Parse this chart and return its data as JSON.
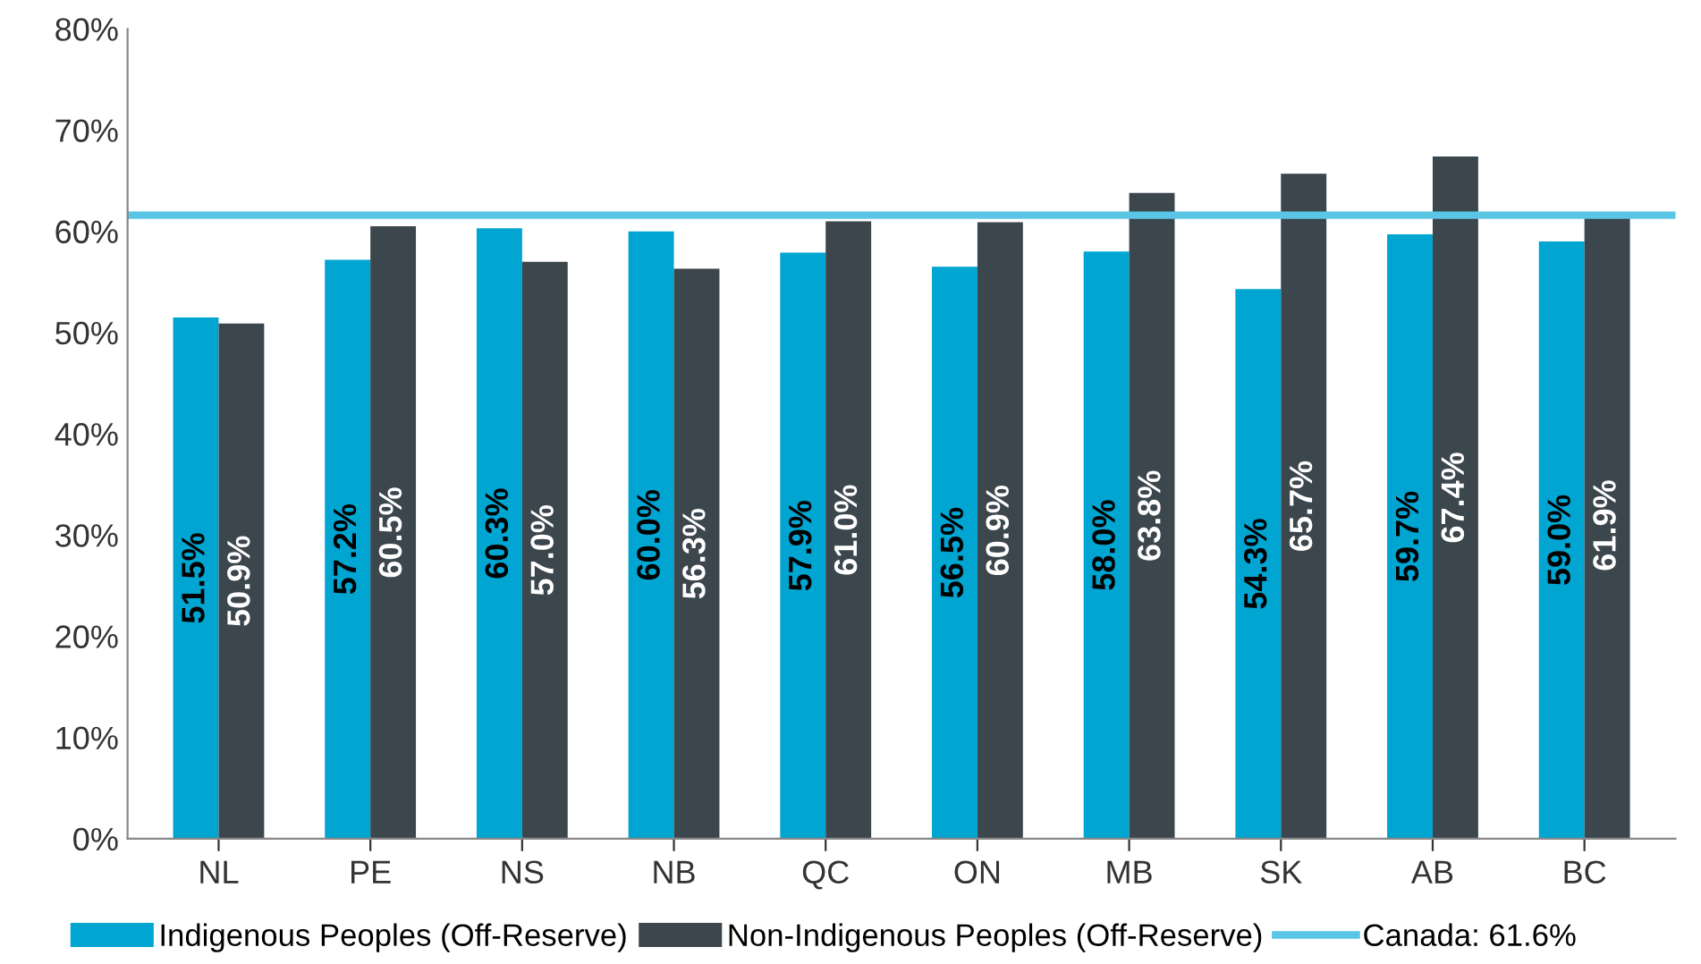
{
  "chart_data": {
    "type": "bar",
    "categories": [
      "NL",
      "PE",
      "NS",
      "NB",
      "QC",
      "ON",
      "MB",
      "SK",
      "AB",
      "BC"
    ],
    "series": [
      {
        "name": "Indigenous Peoples (Off-Reserve)",
        "color": "#00a5d2",
        "values": [
          51.5,
          57.2,
          60.3,
          60.0,
          57.9,
          56.5,
          58.0,
          54.3,
          59.7,
          59.0
        ],
        "value_labels": [
          "51.5%",
          "57.2%",
          "60.3%",
          "60.0%",
          "57.9%",
          "56.5%",
          "58.0%",
          "54.3%",
          "59.7%",
          "59.0%"
        ]
      },
      {
        "name": "Non-Indigenous Peoples (Off-Reserve)",
        "color": "#3c464d",
        "values": [
          50.9,
          60.5,
          57.0,
          56.3,
          61.0,
          60.9,
          63.8,
          65.7,
          67.4,
          61.9
        ],
        "value_labels": [
          "50.9%",
          "60.5%",
          "57.0%",
          "56.3%",
          "61.0%",
          "60.9%",
          "63.8%",
          "65.7%",
          "67.4%",
          "61.9%"
        ]
      }
    ],
    "ref_lines": [
      {
        "axis": "y",
        "value": 61.6,
        "label": "Canada: 61.6%",
        "color": "#5bc5e6"
      }
    ],
    "ylim": [
      0,
      80
    ],
    "yticks": [
      {
        "value": 0,
        "label": "0%"
      },
      {
        "value": 10,
        "label": "10%"
      },
      {
        "value": 20,
        "label": "20%"
      },
      {
        "value": 30,
        "label": "30%"
      },
      {
        "value": 40,
        "label": "40%"
      },
      {
        "value": 50,
        "label": "50%"
      },
      {
        "value": 60,
        "label": "60%"
      },
      {
        "value": 70,
        "label": "70%"
      },
      {
        "value": 80,
        "label": "80%"
      }
    ],
    "grid": false,
    "legend": "bottom"
  }
}
